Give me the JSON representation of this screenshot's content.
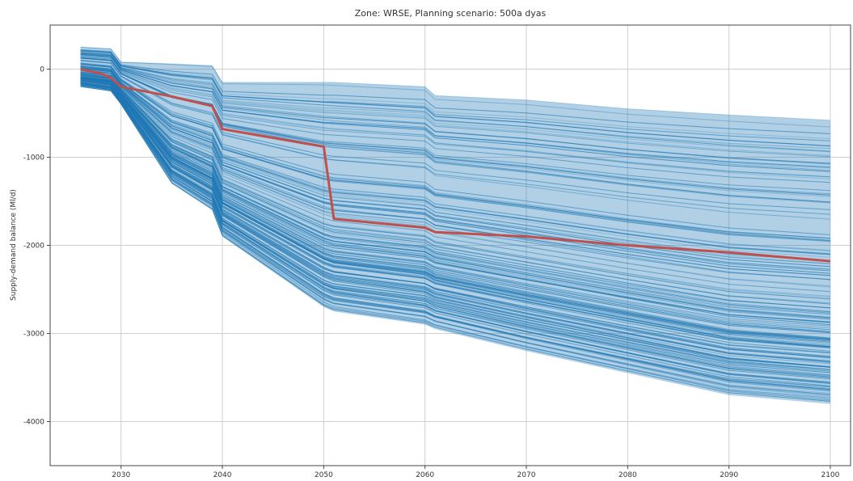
{
  "chart_data": {
    "type": "line",
    "title": "Zone: WRSE, Planning scenario: 500a dyas",
    "xlabel": "",
    "ylabel": "Supply-demand balance (Ml/d)",
    "xlim": [
      2023,
      2102
    ],
    "ylim": [
      -4500,
      500
    ],
    "xticks": [
      2030,
      2040,
      2050,
      2060,
      2070,
      2080,
      2090,
      2100
    ],
    "yticks": [
      0,
      -1000,
      -2000,
      -3000,
      -4000
    ],
    "grid": true,
    "legend": "none",
    "ensemble_color": "#1f77b4",
    "highlight_color": "#c0504d",
    "ensemble_envelope": {
      "x": [
        2026,
        2029,
        2030,
        2035,
        2039,
        2040,
        2050,
        2051,
        2060,
        2061,
        2070,
        2080,
        2090,
        2100
      ],
      "upper": [
        250,
        230,
        80,
        60,
        40,
        -150,
        -150,
        -150,
        -200,
        -300,
        -350,
        -450,
        -520,
        -580
      ],
      "lower": [
        -200,
        -250,
        -400,
        -1300,
        -1600,
        -1900,
        -2700,
        -2750,
        -2900,
        -2950,
        -3200,
        -3450,
        -3700,
        -3800
      ]
    },
    "series": [
      {
        "x": [
          2026,
          2028,
          2029,
          2030,
          2035,
          2039,
          2040,
          2050,
          2051,
          2060,
          2061,
          2070,
          2080,
          2090,
          2100
        ],
        "values": [
          0,
          -50,
          -100,
          -200,
          -310,
          -420,
          -680,
          -880,
          -1700,
          -1800,
          -1850,
          -1900,
          -2000,
          -2080,
          -2180
        ]
      }
    ]
  }
}
